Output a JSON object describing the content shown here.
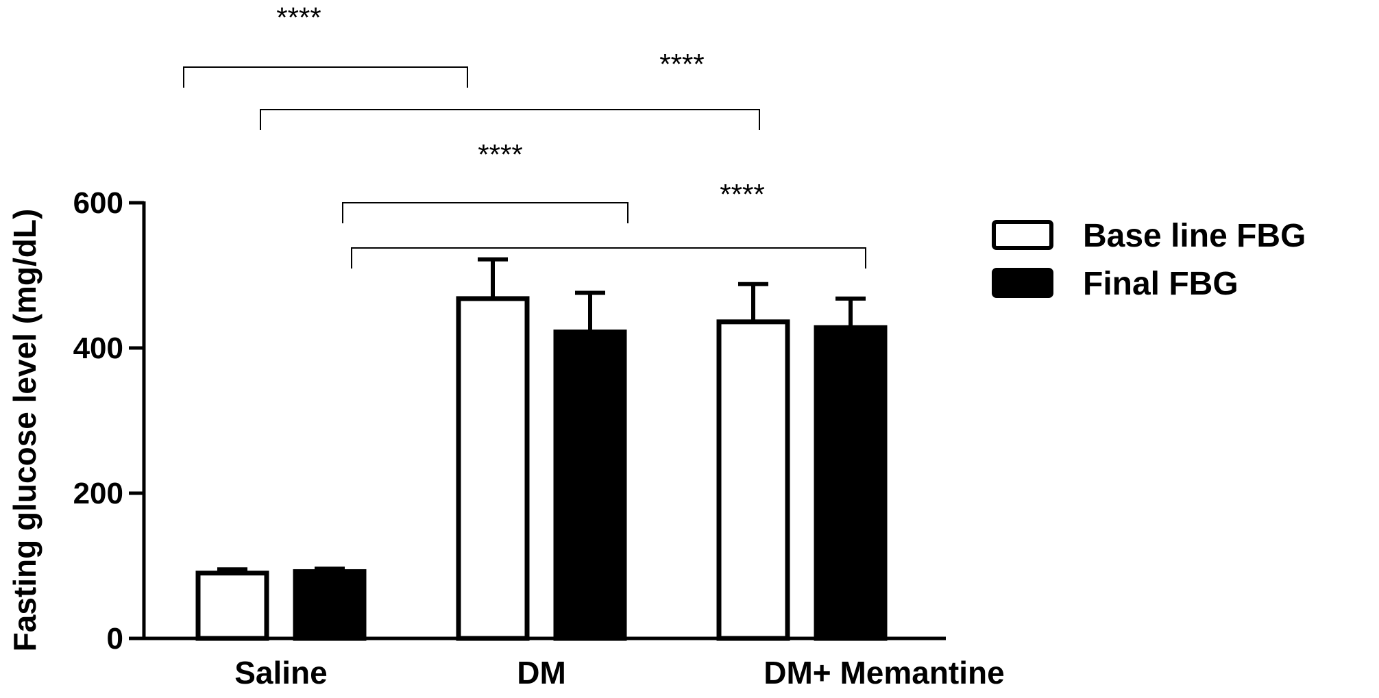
{
  "chart_data": {
    "type": "bar",
    "categories": [
      "Saline",
      "DM",
      "DM+ Memantine"
    ],
    "series": [
      {
        "name": "Base line FBG",
        "fill": "#ffffff",
        "stroke": "#000000",
        "values": [
          90,
          468,
          436
        ],
        "errors": [
          5,
          54,
          52
        ]
      },
      {
        "name": "Final FBG",
        "fill": "#000000",
        "stroke": "#000000",
        "values": [
          92,
          422,
          428
        ],
        "errors": [
          4,
          54,
          40
        ]
      }
    ],
    "ylabel": "Fasting glucose level (mg/dL)",
    "xlabel": "",
    "ylim": [
      0,
      600
    ],
    "yticks": [
      0,
      200,
      400,
      600
    ],
    "legend": "right",
    "grid": false,
    "significance": [
      {
        "label": "****",
        "from": {
          "category": 0,
          "series": 0
        },
        "to": {
          "category": 1,
          "series": 0
        }
      },
      {
        "label": "****",
        "from": {
          "category": 0,
          "series": 1
        },
        "to": {
          "category": 2,
          "series": 0
        }
      },
      {
        "label": "****",
        "from": {
          "category": 1,
          "series": 0
        },
        "to": {
          "category": 1,
          "series": 1
        }
      },
      {
        "label": "****",
        "from": {
          "category": 1,
          "series": 0
        },
        "to": {
          "category": 2,
          "series": 1
        }
      }
    ]
  }
}
